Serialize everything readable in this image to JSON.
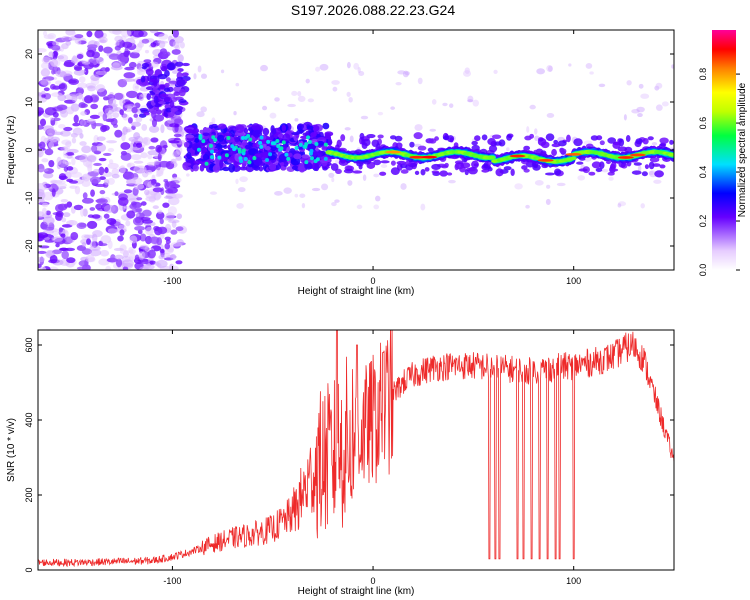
{
  "title": "S197.2026.088.22.23.G24",
  "colors": {
    "snr_line": "#ee2a2a",
    "axis": "#000000",
    "spectro_bg": "#ffffff"
  },
  "chart_data": [
    {
      "type": "heatmap",
      "name": "spectrogram",
      "xlabel": "Height of straight line (km)",
      "ylabel": "Frequency (Hz)",
      "xlim": [
        -167,
        150
      ],
      "ylim": [
        -25,
        25
      ],
      "x_ticks": [
        -100,
        0,
        100
      ],
      "y_ticks": [
        -20,
        -10,
        0,
        10,
        20
      ],
      "colorbar": {
        "label": "Normalized spectral amplitude",
        "range": [
          0,
          0.98
        ],
        "ticks": [
          "0.0",
          "0.2",
          "0.4",
          "0.6",
          "0.8"
        ]
      },
      "description_segments": [
        {
          "x_range": [
            -167,
            -95
          ],
          "freq_range": [
            -25,
            25
          ],
          "amplitude": 0.05,
          "note": "diffuse noise"
        },
        {
          "x_range": [
            -115,
            -93
          ],
          "freq_center": 12,
          "amplitude": 0.2
        },
        {
          "x_range": [
            -93,
            -22
          ],
          "freq_center": 0,
          "freq_spread": 4,
          "amplitude": 0.25
        },
        {
          "x_range": [
            -22,
            150
          ],
          "freq_center": -1,
          "freq_spread": 1,
          "amplitude": 0.9
        }
      ]
    },
    {
      "type": "line",
      "name": "snr",
      "xlabel": "Height of straight line (km)",
      "ylabel": "SNR (10 * v/v)",
      "xlim": [
        -167,
        150
      ],
      "ylim": [
        0,
        640
      ],
      "x_ticks": [
        -100,
        0,
        100
      ],
      "y_ticks": [
        0,
        200,
        400,
        600
      ],
      "series": [
        {
          "name": "SNR",
          "x": [
            -167,
            -150,
            -130,
            -110,
            -100,
            -90,
            -80,
            -70,
            -60,
            -50,
            -40,
            -35,
            -30,
            -25,
            -20,
            -15,
            -10,
            -5,
            0,
            5,
            10,
            15,
            20,
            30,
            40,
            50,
            60,
            70,
            80,
            90,
            100,
            110,
            120,
            125,
            130,
            135,
            140,
            145,
            150
          ],
          "values": [
            20,
            20,
            22,
            25,
            35,
            50,
            70,
            85,
            95,
            110,
            150,
            200,
            260,
            290,
            300,
            330,
            350,
            370,
            400,
            430,
            470,
            500,
            520,
            540,
            545,
            545,
            540,
            535,
            530,
            540,
            545,
            555,
            570,
            590,
            600,
            560,
            470,
            380,
            290
          ],
          "dropouts": [
            58,
            61,
            63,
            72,
            75,
            79,
            83,
            87,
            91,
            93,
            100
          ],
          "dropout_floor": 30
        }
      ]
    }
  ]
}
